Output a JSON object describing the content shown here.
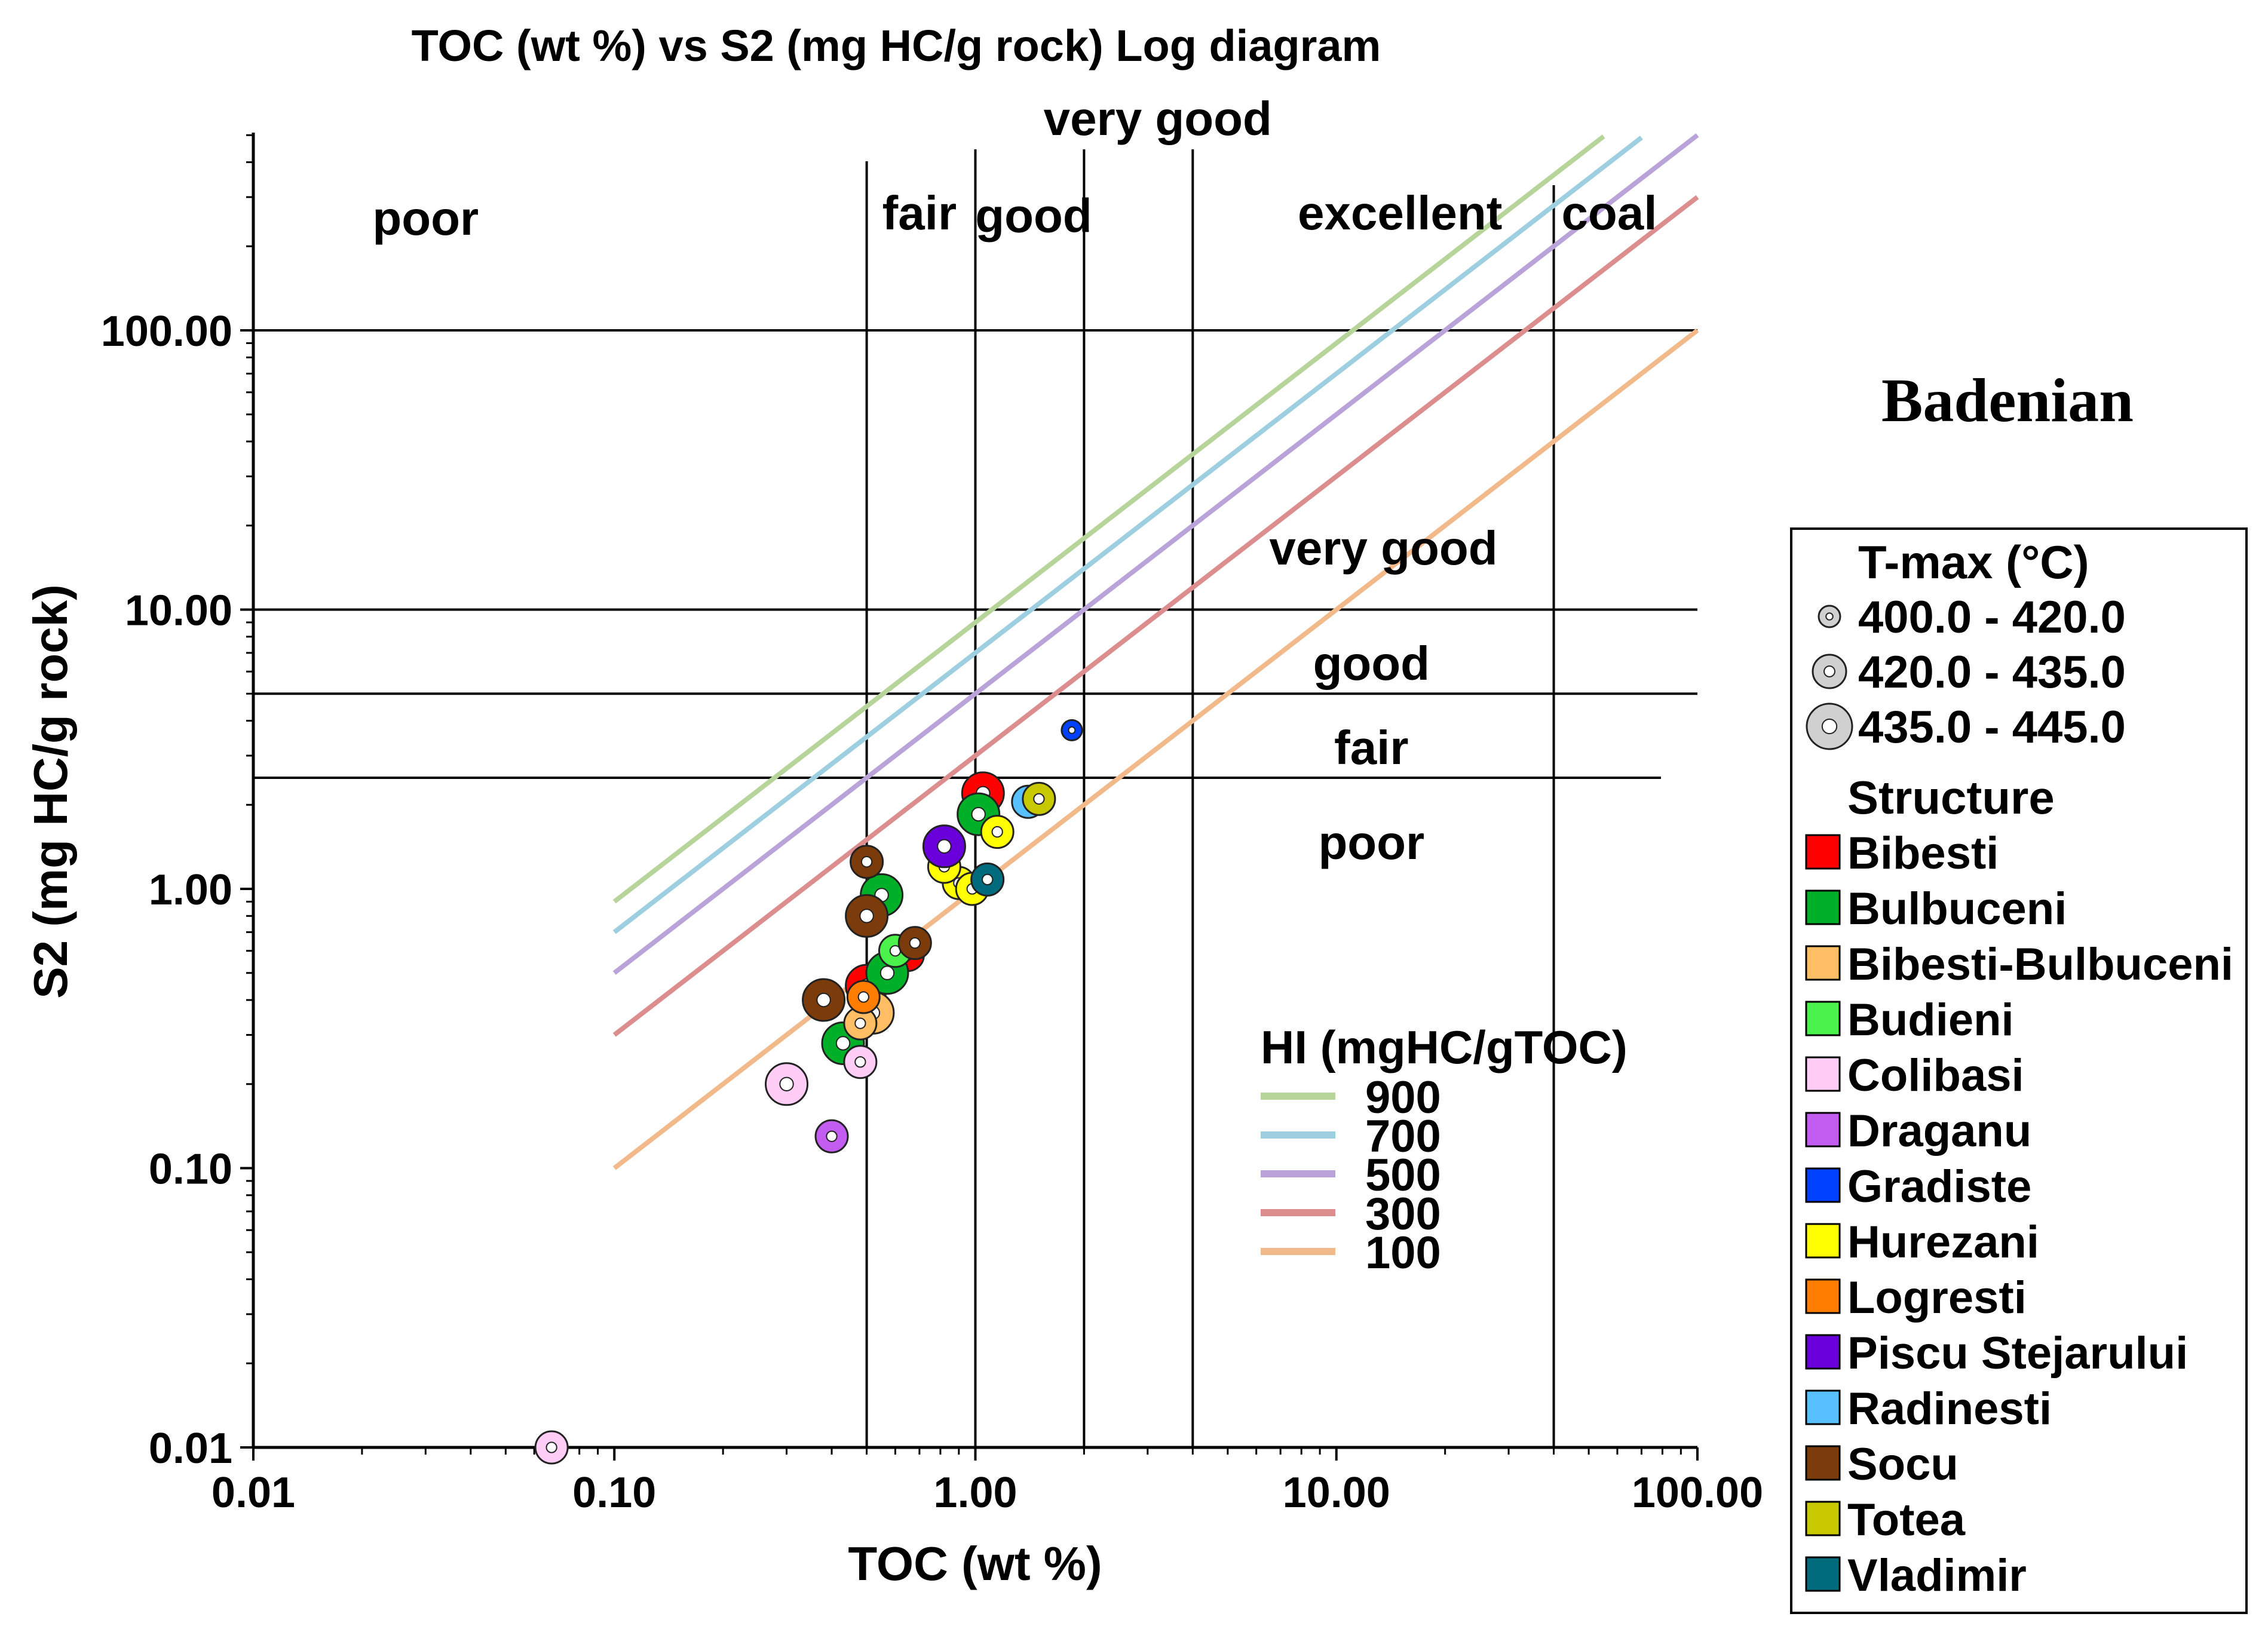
{
  "chart_data": {
    "type": "scatter",
    "title": "TOC (wt %) vs S2 (mg HC/g rock) Log diagram",
    "xlabel": "TOC (wt %)",
    "ylabel": "S2 (mg HC/g rock)",
    "xscale": "log",
    "yscale": "log",
    "xlim": [
      0.01,
      100
    ],
    "ylim": [
      0.01,
      500
    ],
    "xticks": [
      0.01,
      0.1,
      1,
      10,
      100
    ],
    "xtick_labels": [
      "0.01",
      "0.10",
      "1.00",
      "10.00",
      "100.00"
    ],
    "yticks": [
      0.01,
      0.1,
      1,
      10,
      100
    ],
    "ytick_labels": [
      "0.01",
      "0.10",
      "1.00",
      "10.00",
      "100.00"
    ],
    "grid": false,
    "annotation": "Badenian",
    "toc_thresholds": [
      0.5,
      1,
      2,
      4,
      40
    ],
    "s2_thresholds": [
      2.5,
      5,
      10,
      100
    ],
    "toc_zone_labels": [
      {
        "label": "poor",
        "x": 0.03,
        "y": 220
      },
      {
        "label": "fair",
        "x": 0.7,
        "y": 230
      },
      {
        "label": "good",
        "x": 1.45,
        "y": 225
      },
      {
        "label": "very good",
        "x": 3.2,
        "y": 500
      },
      {
        "label": "excellent",
        "x": 15,
        "y": 230
      },
      {
        "label": "coal",
        "x": 57,
        "y": 230
      }
    ],
    "s2_zone_labels": [
      {
        "label": "very good",
        "x": 13.5,
        "y": 14.5
      },
      {
        "label": "good",
        "x": 12.5,
        "y": 5.6
      },
      {
        "label": "fair",
        "x": 12.5,
        "y": 2.8
      },
      {
        "label": "poor",
        "x": 12.5,
        "y": 1.28
      }
    ],
    "hi_legend_title": "HI  (mgHC/gTOC)",
    "hi_lines": [
      {
        "hi": 900,
        "label": "900",
        "color": "#b7d49a",
        "x0": 0.1,
        "x1": 55
      },
      {
        "hi": 700,
        "label": "700",
        "color": "#9dcfe0",
        "x0": 0.1,
        "x1": 70
      },
      {
        "hi": 500,
        "label": "500",
        "color": "#b9a3d9",
        "x0": 0.1,
        "x1": 100
      },
      {
        "hi": 300,
        "label": "300",
        "color": "#dc8e8e",
        "x0": 0.1,
        "x1": 100
      },
      {
        "hi": 100,
        "label": "100",
        "color": "#f2b98a",
        "x0": 0.1,
        "x1": 100
      }
    ],
    "tmax_legend_title": "T-max (°C)",
    "tmax_classes": [
      {
        "label": "400.0 - 420.0",
        "size": "small"
      },
      {
        "label": "420.0 - 435.0",
        "size": "medium"
      },
      {
        "label": "435.0 - 445.0",
        "size": "large"
      }
    ],
    "structure_legend_title": "Structure",
    "structures": [
      {
        "name": "Bibesti",
        "color": "#ff0000"
      },
      {
        "name": "Bulbuceni",
        "color": "#00b028"
      },
      {
        "name": "Bibesti-Bulbuceni",
        "color": "#ffbe64"
      },
      {
        "name": "Budieni",
        "color": "#4cf24c"
      },
      {
        "name": "Colibasi",
        "color": "#ffcdf5"
      },
      {
        "name": "Draganu",
        "color": "#c35cf0"
      },
      {
        "name": "Gradiste",
        "color": "#0040ff"
      },
      {
        "name": "Hurezani",
        "color": "#ffff00"
      },
      {
        "name": "Logresti",
        "color": "#ff7d00"
      },
      {
        "name": "Piscu Stejarului",
        "color": "#6a00d9"
      },
      {
        "name": "Radinesti",
        "color": "#58c0ff"
      },
      {
        "name": "Socu",
        "color": "#7b3b0a"
      },
      {
        "name": "Totea",
        "color": "#c8c800"
      },
      {
        "name": "Vladimir",
        "color": "#006b7d"
      }
    ],
    "points": [
      {
        "structure": "Bibesti",
        "toc": 1.05,
        "s2": 2.2,
        "tmax": "large"
      },
      {
        "structure": "Bibesti",
        "toc": 0.5,
        "s2": 0.45,
        "tmax": "large"
      },
      {
        "structure": "Bibesti",
        "toc": 0.65,
        "s2": 0.58,
        "tmax": "medium"
      },
      {
        "structure": "Bulbuceni",
        "toc": 1.02,
        "s2": 1.85,
        "tmax": "large"
      },
      {
        "structure": "Bulbuceni",
        "toc": 0.55,
        "s2": 0.95,
        "tmax": "large"
      },
      {
        "structure": "Bulbuceni",
        "toc": 0.57,
        "s2": 0.5,
        "tmax": "large"
      },
      {
        "structure": "Bulbuceni",
        "toc": 0.43,
        "s2": 0.28,
        "tmax": "large"
      },
      {
        "structure": "Bibesti-Bulbuceni",
        "toc": 0.52,
        "s2": 0.36,
        "tmax": "large"
      },
      {
        "structure": "Bibesti-Bulbuceni",
        "toc": 0.48,
        "s2": 0.33,
        "tmax": "medium"
      },
      {
        "structure": "Budieni",
        "toc": 0.6,
        "s2": 0.6,
        "tmax": "medium"
      },
      {
        "structure": "Colibasi",
        "toc": 0.3,
        "s2": 0.2,
        "tmax": "large"
      },
      {
        "structure": "Colibasi",
        "toc": 0.48,
        "s2": 0.24,
        "tmax": "medium"
      },
      {
        "structure": "Colibasi",
        "toc": 0.067,
        "s2": 0.01,
        "tmax": "medium"
      },
      {
        "structure": "Draganu",
        "toc": 0.4,
        "s2": 0.13,
        "tmax": "medium"
      },
      {
        "structure": "Gradiste",
        "toc": 1.85,
        "s2": 3.7,
        "tmax": "small"
      },
      {
        "structure": "Hurezani",
        "toc": 1.15,
        "s2": 1.6,
        "tmax": "medium"
      },
      {
        "structure": "Hurezani",
        "toc": 0.9,
        "s2": 1.05,
        "tmax": "medium"
      },
      {
        "structure": "Hurezani",
        "toc": 0.98,
        "s2": 1.0,
        "tmax": "medium"
      },
      {
        "structure": "Hurezani",
        "toc": 0.82,
        "s2": 1.2,
        "tmax": "medium"
      },
      {
        "structure": "Logresti",
        "toc": 0.49,
        "s2": 0.41,
        "tmax": "medium"
      },
      {
        "structure": "Piscu Stejarului",
        "toc": 0.82,
        "s2": 1.42,
        "tmax": "large"
      },
      {
        "structure": "Radinesti",
        "toc": 1.4,
        "s2": 2.05,
        "tmax": "medium"
      },
      {
        "structure": "Socu",
        "toc": 0.5,
        "s2": 1.25,
        "tmax": "medium"
      },
      {
        "structure": "Socu",
        "toc": 0.5,
        "s2": 0.8,
        "tmax": "large"
      },
      {
        "structure": "Socu",
        "toc": 0.38,
        "s2": 0.4,
        "tmax": "large"
      },
      {
        "structure": "Socu",
        "toc": 0.68,
        "s2": 0.64,
        "tmax": "medium"
      },
      {
        "structure": "Totea",
        "toc": 1.5,
        "s2": 2.1,
        "tmax": "medium"
      },
      {
        "structure": "Vladimir",
        "toc": 1.08,
        "s2": 1.08,
        "tmax": "medium"
      }
    ]
  }
}
